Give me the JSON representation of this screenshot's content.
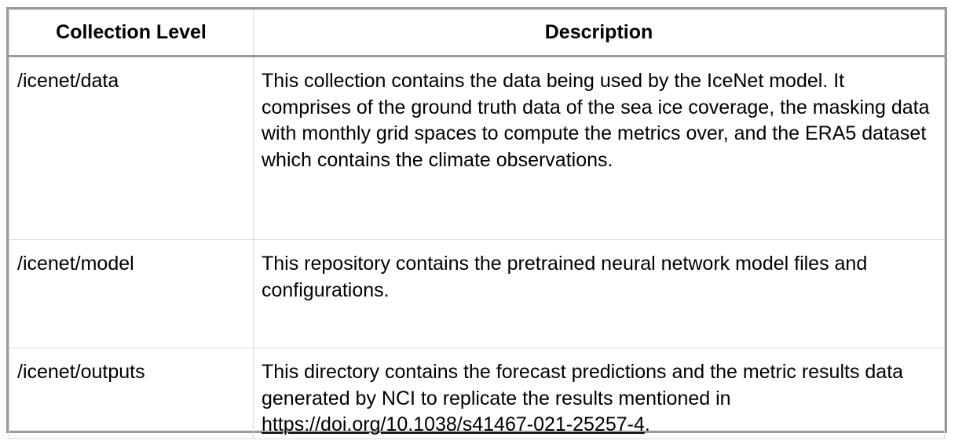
{
  "table": {
    "headers": [
      "Collection Level",
      "Description"
    ],
    "rows": [
      {
        "level": "/icenet/data",
        "description": "This collection contains the data being used by the IceNet model. It comprises of the ground truth data of the sea ice coverage, the masking data with monthly grid spaces to compute the metrics over, and the ERA5 dataset which contains the climate observations."
      },
      {
        "level": "/icenet/model",
        "description": "This repository contains the pretrained neural network model files and configurations."
      },
      {
        "level": "/icenet/outputs",
        "description_prefix": "This directory contains the forecast predictions and the metric results data generated by NCI to replicate the results mentioned in ",
        "link_text": "https://doi.org/10.1038/s41467-021-25257-4",
        "description_suffix": "."
      }
    ]
  }
}
